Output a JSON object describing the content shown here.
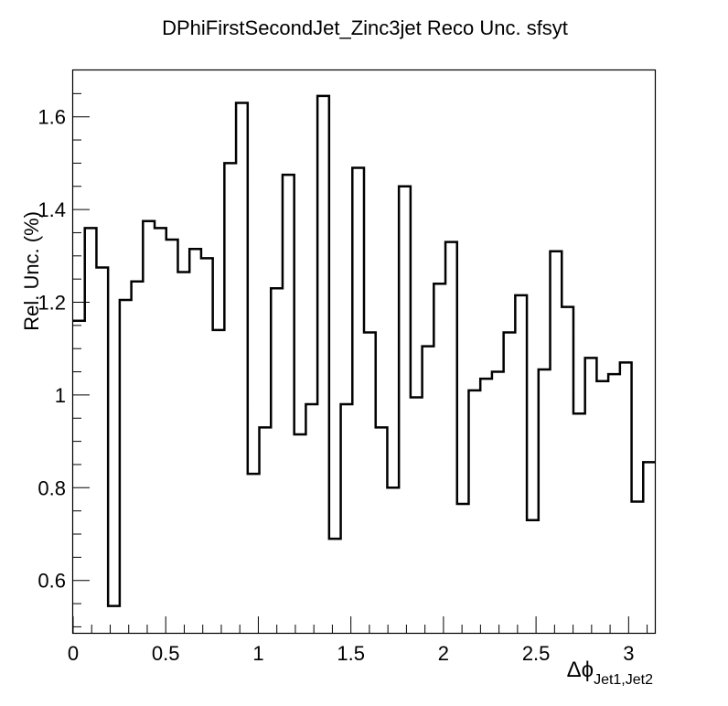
{
  "chart_data": {
    "type": "histogram-step",
    "title": "DPhiFirstSecondJet_Zinc3jet Reco Unc. sfsyt",
    "ylabel": "Rel. Unc. (%)",
    "xlabel_symbol": "Δϕ",
    "xlabel_subscript": "Jet1,Jet2",
    "xlim": [
      0,
      3.1416
    ],
    "ylim": [
      0.487,
      1.7
    ],
    "x_ticks": [
      {
        "value": 0,
        "label": "0"
      },
      {
        "value": 0.5,
        "label": "0.5"
      },
      {
        "value": 1,
        "label": "1"
      },
      {
        "value": 1.5,
        "label": "1.5"
      },
      {
        "value": 2,
        "label": "2"
      },
      {
        "value": 2.5,
        "label": "2.5"
      },
      {
        "value": 3,
        "label": "3"
      }
    ],
    "y_ticks": [
      {
        "value": 0.6,
        "label": "0.6"
      },
      {
        "value": 0.8,
        "label": "0.8"
      },
      {
        "value": 1.0,
        "label": "1"
      },
      {
        "value": 1.2,
        "label": "1.2"
      },
      {
        "value": 1.4,
        "label": "1.4"
      },
      {
        "value": 1.6,
        "label": "1.6"
      }
    ],
    "n_bins": 50,
    "values": [
      1.16,
      1.36,
      1.275,
      0.545,
      1.205,
      1.245,
      1.375,
      1.36,
      1.335,
      1.265,
      1.315,
      1.295,
      1.14,
      1.5,
      1.63,
      0.83,
      0.93,
      1.23,
      1.475,
      0.915,
      0.98,
      1.645,
      0.69,
      0.98,
      1.49,
      1.135,
      0.93,
      0.8,
      1.45,
      0.995,
      1.105,
      1.24,
      1.33,
      0.765,
      1.01,
      1.035,
      1.05,
      1.135,
      1.215,
      0.73,
      1.055,
      1.31,
      1.19,
      0.96,
      1.08,
      1.03,
      1.045,
      1.07,
      0.77,
      0.855
    ],
    "line_color": "#000000",
    "frame_color": "#000000"
  }
}
